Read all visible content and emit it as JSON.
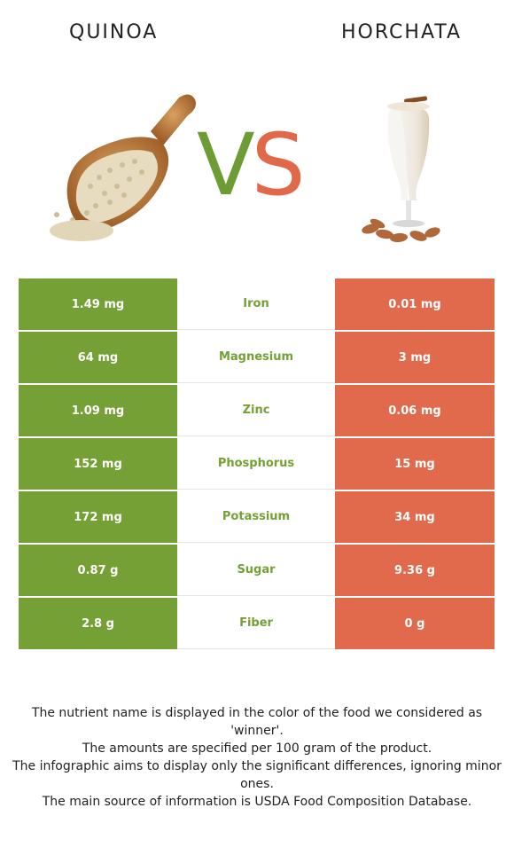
{
  "header": {
    "left_food": "QUINOA",
    "right_food": "HORCHATA",
    "vs_v": "V",
    "vs_s": "S"
  },
  "colors": {
    "left_winner": "#74a035",
    "right_winner": "#e06a4b"
  },
  "images": {
    "left": "quinoa-scoop-image",
    "right": "horchata-glass-image"
  },
  "rows": [
    {
      "nutrient": "Iron",
      "left": "1.49 mg",
      "right": "0.01 mg"
    },
    {
      "nutrient": "Magnesium",
      "left": "64 mg",
      "right": "3 mg"
    },
    {
      "nutrient": "Zinc",
      "left": "1.09 mg",
      "right": "0.06 mg"
    },
    {
      "nutrient": "Phosphorus",
      "left": "152 mg",
      "right": "15 mg"
    },
    {
      "nutrient": "Potassium",
      "left": "172 mg",
      "right": "34 mg"
    },
    {
      "nutrient": "Sugar",
      "left": "0.87 g",
      "right": "9.36 g"
    },
    {
      "nutrient": "Fiber",
      "left": "2.8 g",
      "right": "0 g"
    }
  ],
  "notes": [
    "The nutrient name is displayed in the color of the food we considered as 'winner'.",
    "The amounts are specified per 100 gram of the product.",
    "The infographic aims to display only the significant differences, ignoring minor ones.",
    "The main source of information is USDA Food Composition Database."
  ]
}
